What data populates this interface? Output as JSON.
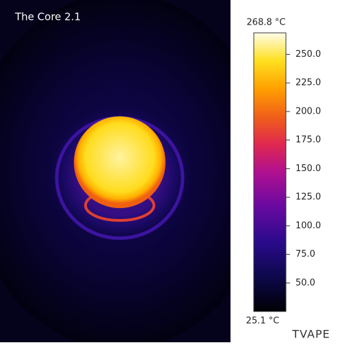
{
  "title": "The Core 2.1",
  "colorbar": {
    "max": {
      "value": 268.8,
      "label": "268.8 °C"
    },
    "min": {
      "value": 25.1,
      "label": "25.1 °C"
    },
    "ticks": [
      {
        "value": 250,
        "label": "250.0"
      },
      {
        "value": 225,
        "label": "225.0"
      },
      {
        "value": 200,
        "label": "200.0"
      },
      {
        "value": 175,
        "label": "175.0"
      },
      {
        "value": 150,
        "label": "150.0"
      },
      {
        "value": 125,
        "label": "125.0"
      },
      {
        "value": 100,
        "label": "100.0"
      },
      {
        "value": 75,
        "label": "75.0"
      },
      {
        "value": 50,
        "label": "50.0"
      }
    ]
  },
  "watermark": "TVAPE"
}
